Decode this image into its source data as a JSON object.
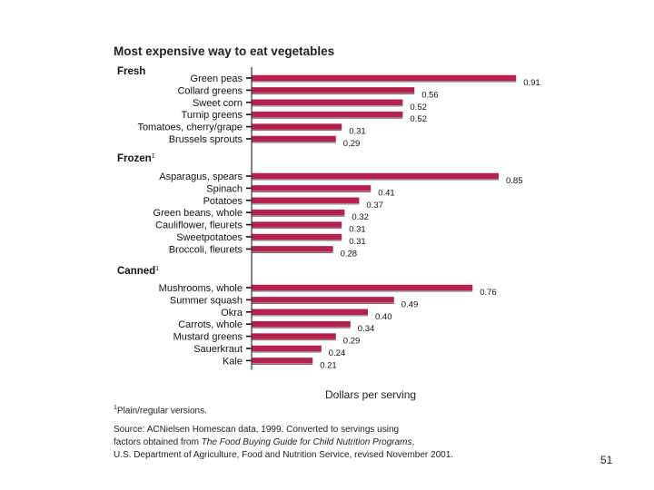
{
  "chart_data": {
    "type": "bar",
    "orientation": "horizontal",
    "title": "Most expensive way to eat vegetables",
    "xlabel": "Dollars per serving",
    "xlim": [
      0,
      1.0
    ],
    "bar_color": "#b5204f",
    "groups": [
      {
        "name": "Fresh",
        "superscript": "",
        "categories": [
          "Green peas",
          "Collard greens",
          "Sweet corn",
          "Turnip greens",
          "Tomatoes, cherry/grape",
          "Brussels sprouts"
        ],
        "values": [
          0.91,
          0.56,
          0.52,
          0.52,
          0.31,
          0.29
        ],
        "labels": [
          "0.91",
          "0.56",
          "0.52",
          "0.52",
          "0.31",
          "0.29"
        ]
      },
      {
        "name": "Frozen",
        "superscript": "1",
        "categories": [
          "Asparagus, spears",
          "Spinach",
          "Potatoes",
          "Green beans, whole",
          "Cauliflower, fleurets",
          "Sweetpotatoes",
          "Broccoli, fleurets"
        ],
        "values": [
          0.85,
          0.41,
          0.37,
          0.32,
          0.31,
          0.31,
          0.28
        ],
        "labels": [
          "0.85",
          "0.41",
          "0.37",
          "0.32",
          "0.31",
          "0.31",
          "0.28"
        ]
      },
      {
        "name": "Canned",
        "superscript": "1",
        "categories": [
          "Mushrooms, whole",
          "Summer squash",
          "Okra",
          "Carrots, whole",
          "Mustard greens",
          "Sauerkraut",
          "Kale"
        ],
        "values": [
          0.76,
          0.49,
          0.4,
          0.34,
          0.29,
          0.24,
          0.21
        ],
        "labels": [
          "0.76",
          "0.49",
          "0.40",
          "0.34",
          "0.29",
          "0.24",
          "0.21"
        ]
      }
    ]
  },
  "footnote": {
    "marker": "1",
    "text": "Plain/regular versions."
  },
  "source": {
    "line1": "Source: ACNielsen Homescan data, 1999. Converted to servings using",
    "line2_prefix": "factors obtained from ",
    "line2_italic": "The Food Buying Guide for Child Nutrition Programs",
    "line2_suffix": ",",
    "line3": "U.S. Department of Agriculture, Food and Nutrition Service, revised November 2001."
  },
  "page_number": "51"
}
